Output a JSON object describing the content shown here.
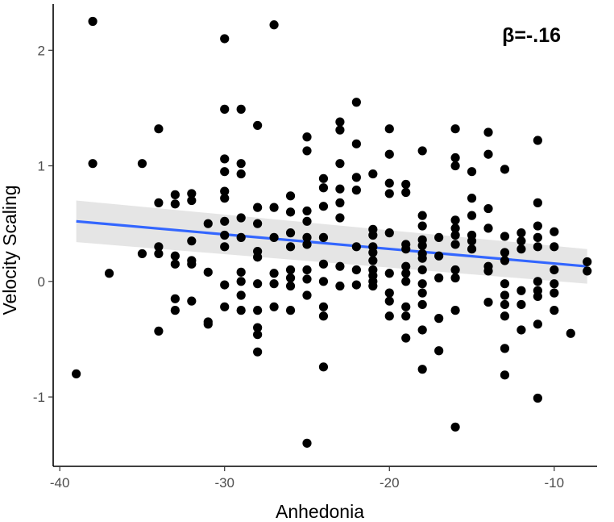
{
  "chart_data": {
    "type": "scatter",
    "xlabel": "Anhedonia",
    "ylabel": "Velocity Scaling",
    "annotation": "β=-.16",
    "xlim": [
      -40.4,
      -7.4
    ],
    "ylim": [
      -1.6,
      2.4
    ],
    "x_ticks": [
      -40,
      -30,
      -20,
      -10
    ],
    "x_tick_labels": [
      "-40",
      "-30",
      "-20",
      "-10"
    ],
    "y_ticks": [
      -1,
      0,
      1,
      2
    ],
    "y_tick_labels": [
      "-1",
      "0",
      "1",
      "2"
    ],
    "grid": false,
    "point_color": "#000000",
    "fit_color": "#3366ff",
    "band_color": "#e0e0e0",
    "fit": {
      "x": [
        -39,
        -8
      ],
      "y": [
        0.52,
        0.13
      ]
    },
    "band": {
      "x": [
        -39,
        -8
      ],
      "lower": [
        0.34,
        -0.02
      ],
      "upper": [
        0.7,
        0.28
      ]
    },
    "points": [
      {
        "x": -39,
        "y": -0.8
      },
      {
        "x": -38,
        "y": 2.25
      },
      {
        "x": -38,
        "y": 1.02
      },
      {
        "x": -37,
        "y": 0.07
      },
      {
        "x": -35,
        "y": 1.02
      },
      {
        "x": -35,
        "y": 0.24
      },
      {
        "x": -34,
        "y": 1.32
      },
      {
        "x": -34,
        "y": 0.68
      },
      {
        "x": -34,
        "y": 0.3
      },
      {
        "x": -34,
        "y": 0.24
      },
      {
        "x": -34,
        "y": -0.43
      },
      {
        "x": -33,
        "y": 0.75
      },
      {
        "x": -33,
        "y": 0.67
      },
      {
        "x": -33,
        "y": 0.22
      },
      {
        "x": -33,
        "y": 0.15
      },
      {
        "x": -33,
        "y": -0.15
      },
      {
        "x": -33,
        "y": -0.25
      },
      {
        "x": -32,
        "y": 0.76
      },
      {
        "x": -32,
        "y": 0.7
      },
      {
        "x": -32,
        "y": 0.35
      },
      {
        "x": -32,
        "y": 0.18
      },
      {
        "x": -32,
        "y": 0.15
      },
      {
        "x": -32,
        "y": -0.17
      },
      {
        "x": -31,
        "y": 0.5
      },
      {
        "x": -31,
        "y": 0.08
      },
      {
        "x": -31,
        "y": -0.35
      },
      {
        "x": -31,
        "y": -0.37
      },
      {
        "x": -30,
        "y": 2.1
      },
      {
        "x": -30,
        "y": 1.49
      },
      {
        "x": -30,
        "y": 1.06
      },
      {
        "x": -30,
        "y": 0.95
      },
      {
        "x": -30,
        "y": 0.78
      },
      {
        "x": -30,
        "y": 0.72
      },
      {
        "x": -30,
        "y": 0.52
      },
      {
        "x": -30,
        "y": 0.4
      },
      {
        "x": -30,
        "y": 0.3
      },
      {
        "x": -30,
        "y": -0.03
      },
      {
        "x": -30,
        "y": -0.22
      },
      {
        "x": -29,
        "y": 1.49
      },
      {
        "x": -29,
        "y": 1.02
      },
      {
        "x": -29,
        "y": 0.93
      },
      {
        "x": -29,
        "y": 0.55
      },
      {
        "x": -29,
        "y": 0.38
      },
      {
        "x": -29,
        "y": 0.08
      },
      {
        "x": -29,
        "y": 0.0
      },
      {
        "x": -29,
        "y": -0.12
      },
      {
        "x": -29,
        "y": -0.25
      },
      {
        "x": -28,
        "y": 1.35
      },
      {
        "x": -28,
        "y": 0.64
      },
      {
        "x": -28,
        "y": 0.5
      },
      {
        "x": -28,
        "y": 0.26
      },
      {
        "x": -28,
        "y": 0.21
      },
      {
        "x": -28,
        "y": -0.02
      },
      {
        "x": -28,
        "y": -0.25
      },
      {
        "x": -28,
        "y": -0.4
      },
      {
        "x": -28,
        "y": -0.46
      },
      {
        "x": -28,
        "y": -0.61
      },
      {
        "x": -27,
        "y": 2.22
      },
      {
        "x": -27,
        "y": 0.64
      },
      {
        "x": -27,
        "y": 0.38
      },
      {
        "x": -27,
        "y": 0.07
      },
      {
        "x": -27,
        "y": -0.02
      },
      {
        "x": -27,
        "y": -0.22
      },
      {
        "x": -26,
        "y": 0.74
      },
      {
        "x": -26,
        "y": 0.6
      },
      {
        "x": -26,
        "y": 0.42
      },
      {
        "x": -26,
        "y": 0.3
      },
      {
        "x": -26,
        "y": 0.1
      },
      {
        "x": -26,
        "y": 0.03
      },
      {
        "x": -26,
        "y": -0.04
      },
      {
        "x": -26,
        "y": -0.25
      },
      {
        "x": -25,
        "y": 1.25
      },
      {
        "x": -25,
        "y": 1.13
      },
      {
        "x": -25,
        "y": 0.61
      },
      {
        "x": -25,
        "y": 0.52
      },
      {
        "x": -25,
        "y": 0.38
      },
      {
        "x": -25,
        "y": 0.32
      },
      {
        "x": -25,
        "y": 0.1
      },
      {
        "x": -25,
        "y": 0.02
      },
      {
        "x": -25,
        "y": -0.12
      },
      {
        "x": -25,
        "y": -1.4
      },
      {
        "x": -24,
        "y": 0.89
      },
      {
        "x": -24,
        "y": 0.81
      },
      {
        "x": -24,
        "y": 0.65
      },
      {
        "x": -24,
        "y": 0.38
      },
      {
        "x": -24,
        "y": 0.15
      },
      {
        "x": -24,
        "y": 0.0
      },
      {
        "x": -24,
        "y": -0.22
      },
      {
        "x": -24,
        "y": -0.3
      },
      {
        "x": -24,
        "y": -0.74
      },
      {
        "x": -23,
        "y": 1.38
      },
      {
        "x": -23,
        "y": 1.31
      },
      {
        "x": -23,
        "y": 1.02
      },
      {
        "x": -23,
        "y": 0.8
      },
      {
        "x": -23,
        "y": 0.68
      },
      {
        "x": -23,
        "y": 0.55
      },
      {
        "x": -23,
        "y": 0.13
      },
      {
        "x": -23,
        "y": -0.04
      },
      {
        "x": -22,
        "y": 1.55
      },
      {
        "x": -22,
        "y": 1.19
      },
      {
        "x": -22,
        "y": 0.9
      },
      {
        "x": -22,
        "y": 0.79
      },
      {
        "x": -22,
        "y": 0.3
      },
      {
        "x": -22,
        "y": 0.1
      },
      {
        "x": -22,
        "y": -0.03
      },
      {
        "x": -21,
        "y": 0.93
      },
      {
        "x": -21,
        "y": 0.45
      },
      {
        "x": -21,
        "y": 0.4
      },
      {
        "x": -21,
        "y": 0.3
      },
      {
        "x": -21,
        "y": 0.25
      },
      {
        "x": -21,
        "y": 0.18
      },
      {
        "x": -21,
        "y": 0.1
      },
      {
        "x": -21,
        "y": 0.05
      },
      {
        "x": -21,
        "y": 0.0
      },
      {
        "x": -21,
        "y": -0.04
      },
      {
        "x": -20,
        "y": 1.32
      },
      {
        "x": -20,
        "y": 1.1
      },
      {
        "x": -20,
        "y": 0.85
      },
      {
        "x": -20,
        "y": 0.76
      },
      {
        "x": -20,
        "y": 0.42
      },
      {
        "x": -20,
        "y": 0.07
      },
      {
        "x": -20,
        "y": -0.1
      },
      {
        "x": -20,
        "y": -0.17
      },
      {
        "x": -20,
        "y": -0.3
      },
      {
        "x": -19,
        "y": 0.84
      },
      {
        "x": -19,
        "y": 0.77
      },
      {
        "x": -19,
        "y": 0.32
      },
      {
        "x": -19,
        "y": 0.28
      },
      {
        "x": -19,
        "y": 0.13
      },
      {
        "x": -19,
        "y": 0.07
      },
      {
        "x": -19,
        "y": 0.0
      },
      {
        "x": -19,
        "y": -0.22
      },
      {
        "x": -19,
        "y": -0.3
      },
      {
        "x": -19,
        "y": -0.49
      },
      {
        "x": -18,
        "y": 1.13
      },
      {
        "x": -18,
        "y": 0.57
      },
      {
        "x": -18,
        "y": 0.48
      },
      {
        "x": -18,
        "y": 0.36
      },
      {
        "x": -18,
        "y": 0.31
      },
      {
        "x": -18,
        "y": 0.24
      },
      {
        "x": -18,
        "y": 0.2
      },
      {
        "x": -18,
        "y": 0.1
      },
      {
        "x": -18,
        "y": -0.02
      },
      {
        "x": -18,
        "y": -0.1
      },
      {
        "x": -18,
        "y": -0.2
      },
      {
        "x": -18,
        "y": -0.42
      },
      {
        "x": -18,
        "y": -0.76
      },
      {
        "x": -17,
        "y": 0.38
      },
      {
        "x": -17,
        "y": 0.22
      },
      {
        "x": -17,
        "y": 0.03
      },
      {
        "x": -17,
        "y": -0.32
      },
      {
        "x": -17,
        "y": -0.6
      },
      {
        "x": -16,
        "y": 1.32
      },
      {
        "x": -16,
        "y": 1.07
      },
      {
        "x": -16,
        "y": 1.0
      },
      {
        "x": -16,
        "y": 0.53
      },
      {
        "x": -16,
        "y": 0.46
      },
      {
        "x": -16,
        "y": 0.4
      },
      {
        "x": -16,
        "y": 0.32
      },
      {
        "x": -16,
        "y": 0.1
      },
      {
        "x": -16,
        "y": 0.03
      },
      {
        "x": -16,
        "y": -0.25
      },
      {
        "x": -16,
        "y": -1.26
      },
      {
        "x": -15,
        "y": 0.95
      },
      {
        "x": -15,
        "y": 0.72
      },
      {
        "x": -15,
        "y": 0.57
      },
      {
        "x": -15,
        "y": 0.4
      },
      {
        "x": -15,
        "y": 0.35
      },
      {
        "x": -15,
        "y": 0.28
      },
      {
        "x": -14,
        "y": 1.29
      },
      {
        "x": -14,
        "y": 1.1
      },
      {
        "x": -14,
        "y": 0.63
      },
      {
        "x": -14,
        "y": 0.46
      },
      {
        "x": -14,
        "y": 0.13
      },
      {
        "x": -14,
        "y": 0.09
      },
      {
        "x": -14,
        "y": -0.18
      },
      {
        "x": -13,
        "y": 0.97
      },
      {
        "x": -13,
        "y": 0.39
      },
      {
        "x": -13,
        "y": 0.25
      },
      {
        "x": -13,
        "y": 0.18
      },
      {
        "x": -13,
        "y": -0.02
      },
      {
        "x": -13,
        "y": -0.12
      },
      {
        "x": -13,
        "y": -0.2
      },
      {
        "x": -13,
        "y": -0.3
      },
      {
        "x": -13,
        "y": -0.58
      },
      {
        "x": -13,
        "y": -0.81
      },
      {
        "x": -12,
        "y": 0.42
      },
      {
        "x": -12,
        "y": 0.35
      },
      {
        "x": -12,
        "y": 0.28
      },
      {
        "x": -12,
        "y": -0.08
      },
      {
        "x": -12,
        "y": -0.2
      },
      {
        "x": -12,
        "y": -0.42
      },
      {
        "x": -11,
        "y": 1.22
      },
      {
        "x": -11,
        "y": 0.68
      },
      {
        "x": -11,
        "y": 0.48
      },
      {
        "x": -11,
        "y": 0.38
      },
      {
        "x": -11,
        "y": 0.3
      },
      {
        "x": -11,
        "y": 0.0
      },
      {
        "x": -11,
        "y": -0.08
      },
      {
        "x": -11,
        "y": -0.13
      },
      {
        "x": -11,
        "y": -0.37
      },
      {
        "x": -11,
        "y": -1.01
      },
      {
        "x": -10,
        "y": 0.43
      },
      {
        "x": -10,
        "y": 0.3
      },
      {
        "x": -10,
        "y": 0.1
      },
      {
        "x": -10,
        "y": -0.02
      },
      {
        "x": -10,
        "y": -0.1
      },
      {
        "x": -10,
        "y": -0.25
      },
      {
        "x": -9,
        "y": -0.45
      },
      {
        "x": -8,
        "y": 0.17
      },
      {
        "x": -8,
        "y": 0.09
      }
    ]
  }
}
